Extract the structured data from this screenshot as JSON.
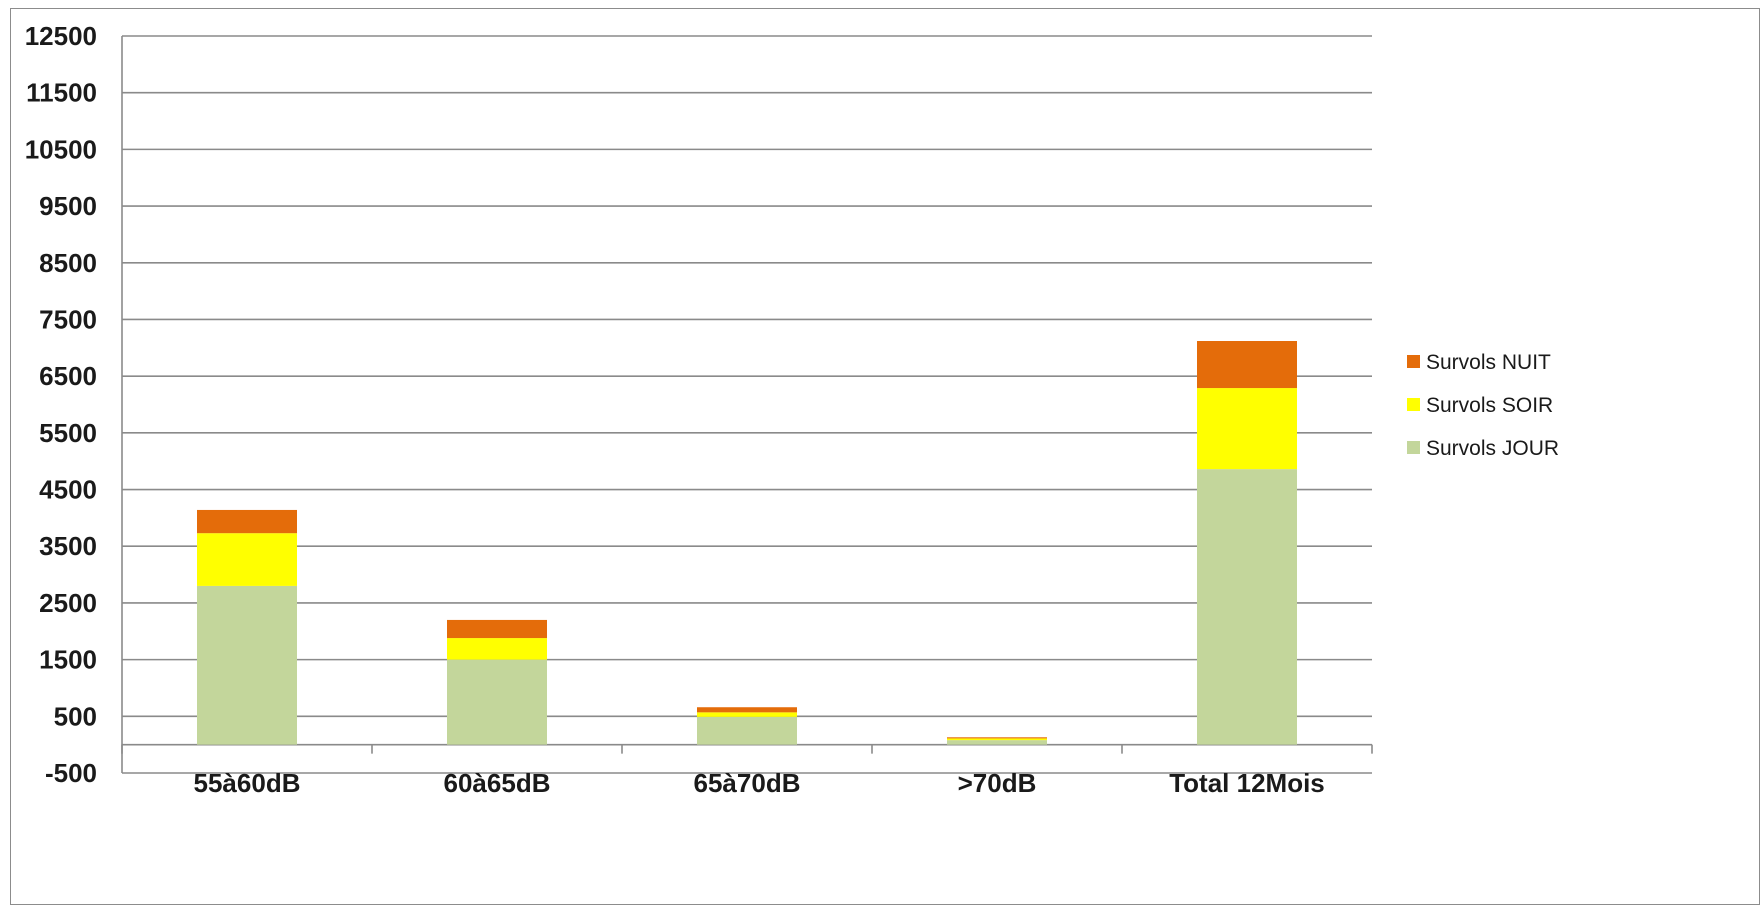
{
  "chart_data": {
    "type": "bar",
    "stacked": true,
    "categories": [
      "55à60dB",
      "60à65dB",
      "65à70dB",
      ">70dB",
      "Total 12Mois"
    ],
    "series": [
      {
        "name": "Survols JOUR",
        "color": "#c3d69b",
        "values": [
          2800,
          1500,
          490,
          80,
          4860
        ]
      },
      {
        "name": "Survols SOIR",
        "color": "#ffff00",
        "values": [
          930,
          380,
          80,
          30,
          1430
        ]
      },
      {
        "name": "Survols NUIT",
        "color": "#e46c0a",
        "values": [
          410,
          320,
          90,
          20,
          830
        ]
      }
    ],
    "ylim": [
      -500,
      12500
    ],
    "yticks": [
      -500,
      500,
      1500,
      2500,
      3500,
      4500,
      5500,
      6500,
      7500,
      8500,
      9500,
      10500,
      11500,
      12500
    ],
    "grid": true,
    "legend_position": "right",
    "legend_order": [
      "Survols NUIT",
      "Survols SOIR",
      "Survols JOUR"
    ],
    "title": "",
    "xlabel": "",
    "ylabel": ""
  }
}
